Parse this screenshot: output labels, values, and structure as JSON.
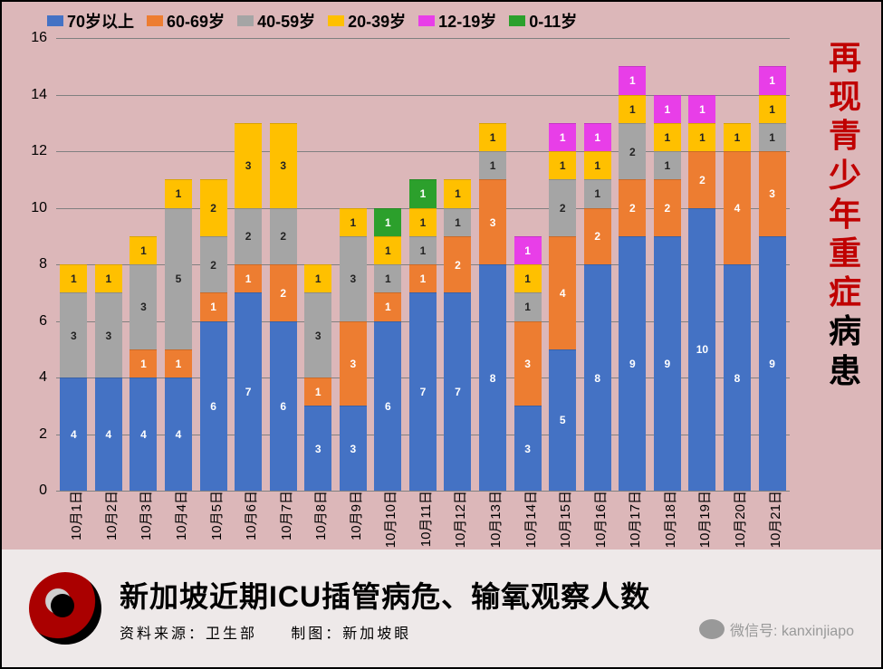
{
  "chart": {
    "type": "stacked-bar",
    "ylim": 16,
    "ytick_step": 2,
    "background_color": "#dcb7b9",
    "grid_color": "#808080",
    "label_fontsize": 15,
    "series": [
      {
        "key": "a70",
        "label": "70岁以上",
        "color": "#4472c4",
        "text": "light"
      },
      {
        "key": "a60",
        "label": "60-69岁",
        "color": "#ed7d31",
        "text": "light"
      },
      {
        "key": "a40",
        "label": "40-59岁",
        "color": "#a5a5a5",
        "text": "dark"
      },
      {
        "key": "a20",
        "label": "20-39岁",
        "color": "#ffc000",
        "text": "dark"
      },
      {
        "key": "a12",
        "label": "12-19岁",
        "color": "#e83ee8",
        "text": "light"
      },
      {
        "key": "a00",
        "label": "0-11岁",
        "color": "#2ca02c",
        "text": "light"
      }
    ],
    "categories": [
      "10月1日",
      "10月2日",
      "10月3日",
      "10月4日",
      "10月5日",
      "10月6日",
      "10月7日",
      "10月8日",
      "10月9日",
      "10月10日",
      "10月11日",
      "10月12日",
      "10月13日",
      "10月14日",
      "10月15日",
      "10月16日",
      "10月17日",
      "10月18日",
      "10月19日",
      "10月20日",
      "10月21日"
    ],
    "data": [
      {
        "a70": 4,
        "a60": 0,
        "a40": 3,
        "a20": 1,
        "a12": 0,
        "a00": 0
      },
      {
        "a70": 4,
        "a60": 0,
        "a40": 3,
        "a20": 1,
        "a12": 0,
        "a00": 0
      },
      {
        "a70": 4,
        "a60": 1,
        "a40": 3,
        "a20": 1,
        "a12": 0,
        "a00": 0
      },
      {
        "a70": 4,
        "a60": 1,
        "a40": 5,
        "a20": 1,
        "a12": 0,
        "a00": 0
      },
      {
        "a70": 6,
        "a60": 1,
        "a40": 2,
        "a20": 2,
        "a12": 0,
        "a00": 0
      },
      {
        "a70": 7,
        "a60": 1,
        "a40": 2,
        "a20": 3,
        "a12": 0,
        "a00": 0
      },
      {
        "a70": 6,
        "a60": 2,
        "a40": 2,
        "a20": 3,
        "a12": 0,
        "a00": 0
      },
      {
        "a70": 3,
        "a60": 1,
        "a40": 3,
        "a20": 1,
        "a12": 0,
        "a00": 0
      },
      {
        "a70": 3,
        "a60": 3,
        "a40": 3,
        "a20": 1,
        "a12": 0,
        "a00": 0
      },
      {
        "a70": 6,
        "a60": 1,
        "a40": 1,
        "a20": 1,
        "a12": 0,
        "a00": 1
      },
      {
        "a70": 7,
        "a60": 1,
        "a40": 1,
        "a20": 1,
        "a12": 0,
        "a00": 1
      },
      {
        "a70": 7,
        "a60": 2,
        "a40": 1,
        "a20": 1,
        "a12": 0,
        "a00": 0
      },
      {
        "a70": 8,
        "a60": 3,
        "a40": 1,
        "a20": 1,
        "a12": 0,
        "a00": 0
      },
      {
        "a70": 3,
        "a60": 3,
        "a40": 1,
        "a20": 1,
        "a12": 1,
        "a00": 0
      },
      {
        "a70": 5,
        "a60": 4,
        "a40": 2,
        "a20": 1,
        "a12": 1,
        "a00": 0
      },
      {
        "a70": 8,
        "a60": 2,
        "a40": 1,
        "a20": 1,
        "a12": 1,
        "a00": 0
      },
      {
        "a70": 9,
        "a60": 2,
        "a40": 2,
        "a20": 1,
        "a12": 1,
        "a00": 0
      },
      {
        "a70": 9,
        "a60": 2,
        "a40": 1,
        "a20": 1,
        "a12": 1,
        "a00": 0
      },
      {
        "a70": 10,
        "a60": 2,
        "a40": 0,
        "a20": 1,
        "a12": 1,
        "a00": 0
      },
      {
        "a70": 8,
        "a60": 4,
        "a40": 0,
        "a20": 1,
        "a12": 0,
        "a00": 0
      },
      {
        "a70": 9,
        "a60": 3,
        "a40": 1,
        "a20": 1,
        "a12": 1,
        "a00": 0
      }
    ]
  },
  "sidetext": {
    "red_chars": [
      "再",
      "现",
      "青",
      "少",
      "年",
      "重",
      "症"
    ],
    "red_color": "#c00000",
    "black_chars": [
      "病",
      "患"
    ],
    "black_color": "#000"
  },
  "footer": {
    "title": "新加坡近期ICU插管病危、输氧观察人数",
    "source_label": "资料来源：卫生部",
    "maker_label": "制图：新加坡眼",
    "wx_label": "微信号: kanxinjiapo"
  }
}
